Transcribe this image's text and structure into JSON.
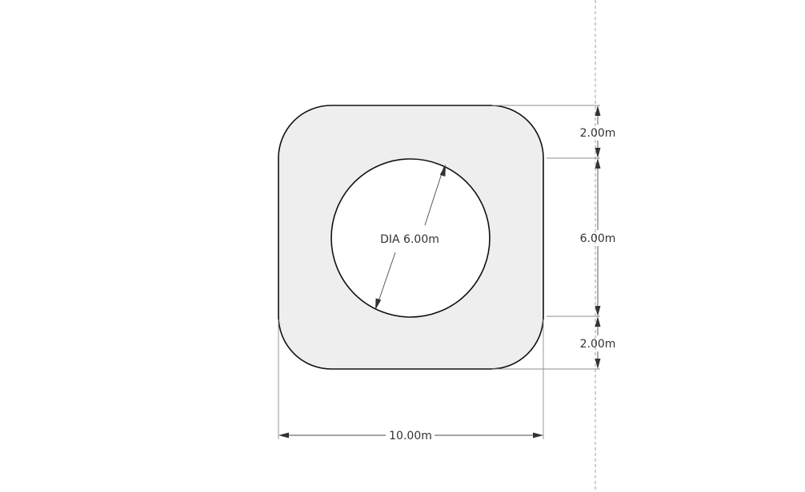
{
  "diagram": {
    "shape": "rounded-square-with-circular-hole",
    "fill_color": "#eeeeee",
    "outline_color": "#111111",
    "guide_line_color": "#a0a0a0",
    "dimensions": {
      "overall_width": "10.00m",
      "hole_diameter": "DIA 6.00m",
      "top_offset": "2.00m",
      "hole_height": "6.00m",
      "bottom_offset": "2.00m"
    }
  }
}
